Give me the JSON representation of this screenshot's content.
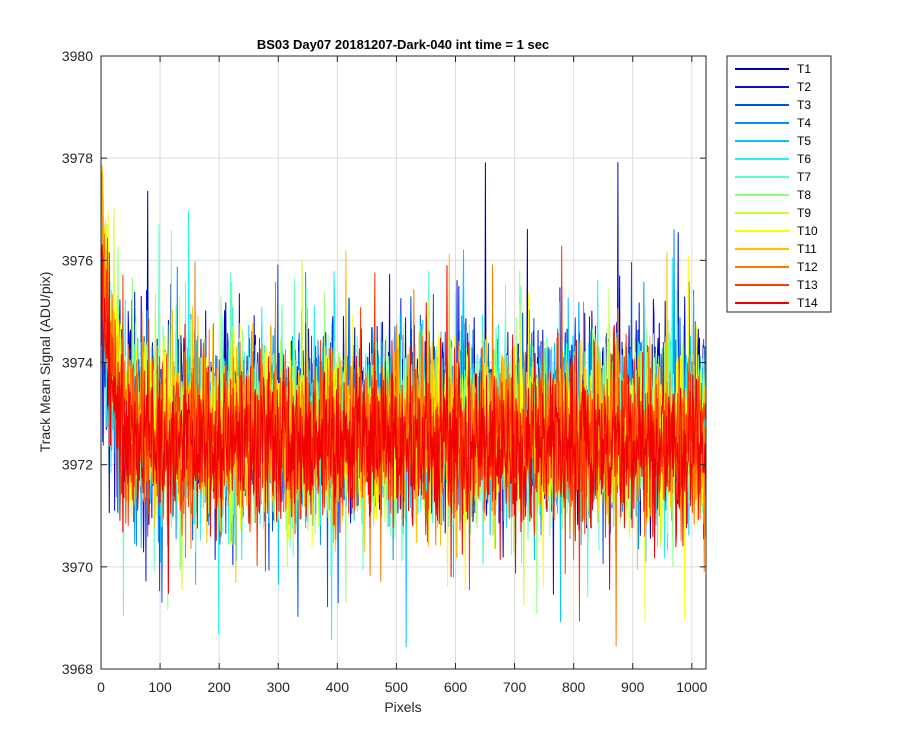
{
  "chart_data": {
    "type": "line",
    "title": "BS03 Day07 20181207-Dark-040 int time = 1 sec",
    "xlabel": "Pixels",
    "ylabel": "Track Mean Signal (ADU/pix)",
    "xlim": [
      0,
      1024
    ],
    "ylim": [
      3968,
      3980
    ],
    "xticks": [
      0,
      100,
      200,
      300,
      400,
      500,
      600,
      700,
      800,
      900,
      1000
    ],
    "yticks": [
      3968,
      3970,
      3972,
      3974,
      3976,
      3978,
      3980
    ],
    "grid": true,
    "legend_position": "outside-right-top",
    "num_points": 1024,
    "series": [
      {
        "name": "T1",
        "color": "#0000b0",
        "baseline": 3972.9,
        "noise_sd": 0.85,
        "edge_start": 3975.0
      },
      {
        "name": "T2",
        "color": "#0010d8",
        "baseline": 3972.9,
        "noise_sd": 0.85,
        "edge_start": 3975.2
      },
      {
        "name": "T3",
        "color": "#0050f0",
        "baseline": 3972.8,
        "noise_sd": 0.85,
        "edge_start": 3975.3
      },
      {
        "name": "T4",
        "color": "#0090f8",
        "baseline": 3972.8,
        "noise_sd": 0.8,
        "edge_start": 3975.5
      },
      {
        "name": "T5",
        "color": "#00c8ff",
        "baseline": 3972.8,
        "noise_sd": 0.8,
        "edge_start": 3975.8
      },
      {
        "name": "T6",
        "color": "#20f0f0",
        "baseline": 3972.7,
        "noise_sd": 0.8,
        "edge_start": 3976.0
      },
      {
        "name": "T7",
        "color": "#60ffc0",
        "baseline": 3972.7,
        "noise_sd": 0.8,
        "edge_start": 3976.2
      },
      {
        "name": "T8",
        "color": "#90ff80",
        "baseline": 3972.7,
        "noise_sd": 0.8,
        "edge_start": 3976.5
      },
      {
        "name": "T9",
        "color": "#c8ff30",
        "baseline": 3972.6,
        "noise_sd": 0.8,
        "edge_start": 3976.8
      },
      {
        "name": "T10",
        "color": "#ffff00",
        "baseline": 3972.6,
        "noise_sd": 0.8,
        "edge_start": 3977.5
      },
      {
        "name": "T11",
        "color": "#ffc000",
        "baseline": 3972.6,
        "noise_sd": 0.78,
        "edge_start": 3977.0
      },
      {
        "name": "T12",
        "color": "#ff7800",
        "baseline": 3972.5,
        "noise_sd": 0.78,
        "edge_start": 3976.5
      },
      {
        "name": "T13",
        "color": "#ff3800",
        "baseline": 3972.5,
        "noise_sd": 0.78,
        "edge_start": 3976.0
      },
      {
        "name": "T14",
        "color": "#f00000",
        "baseline": 3972.4,
        "noise_sd": 0.78,
        "edge_start": 3975.5
      }
    ]
  }
}
